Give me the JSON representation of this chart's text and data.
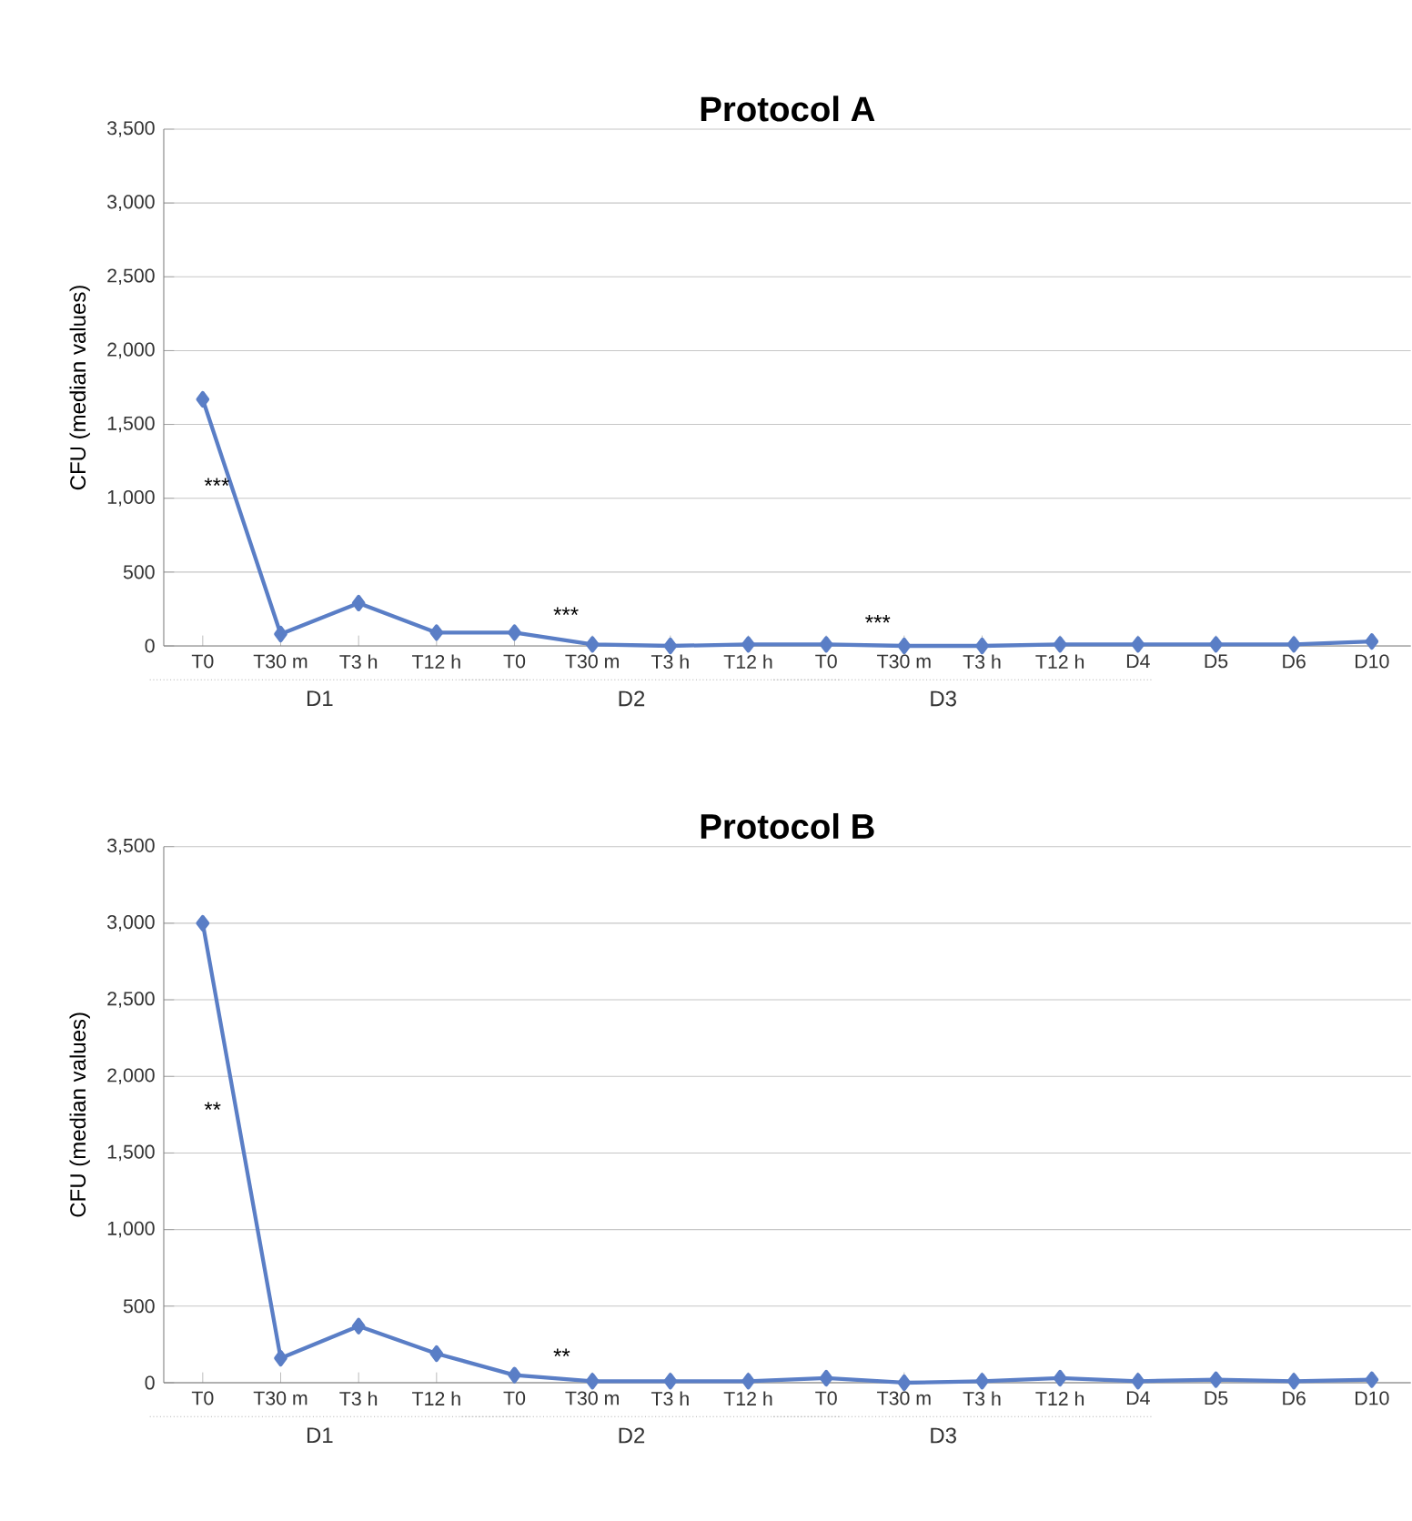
{
  "chart_data": [
    {
      "type": "line",
      "title": "Protocol A",
      "ylabel": "CFU (median values)",
      "categories": [
        "T0",
        "T30 m",
        "T3 h",
        "T12 h",
        "T0",
        "T30 m",
        "T3 h",
        "T12 h",
        "T0",
        "T30 m",
        "T3 h",
        "T12 h",
        "D4",
        "D5",
        "D6",
        "D10"
      ],
      "series": [
        {
          "color": "#5a7ec6",
          "values": [
            1670,
            80,
            290,
            90,
            90,
            10,
            0,
            10,
            10,
            0,
            0,
            10,
            10,
            10,
            10,
            30
          ]
        }
      ],
      "ylim": [
        0,
        3500
      ],
      "yticks": [
        0,
        500,
        {
          "value": 1000,
          "label": "1,000"
        },
        {
          "value": 1500,
          "label": "1,500"
        },
        {
          "value": 2000,
          "label": "2,000"
        },
        {
          "value": 2500,
          "label": "2,500"
        },
        {
          "value": 3000,
          "label": "3,000"
        },
        {
          "value": 3500,
          "label": "3,500"
        }
      ],
      "grid": "y",
      "marker": "diamond",
      "line_style": "solid",
      "annotations": [
        "***",
        "***",
        "***",
        "D1",
        "D2",
        "D3"
      ]
    },
    {
      "type": "line",
      "title": "Protocol B",
      "ylabel": "CFU (median values)",
      "categories": [
        "T0",
        "T30 m",
        "T3 h",
        "T12 h",
        "T0",
        "T30 m",
        "T3 h",
        "T12 h",
        "T0",
        "T30 m",
        "T3 h",
        "T12 h",
        "D4",
        "D5",
        "D6",
        "D10"
      ],
      "series": [
        {
          "color": "#5a7ec6",
          "values": [
            3000,
            160,
            370,
            190,
            50,
            10,
            10,
            10,
            30,
            0,
            10,
            30,
            10,
            20,
            10,
            20
          ]
        }
      ],
      "ylim": [
        0,
        3500
      ],
      "yticks": [
        0,
        500,
        {
          "value": 1000,
          "label": "1,000"
        },
        {
          "value": 1500,
          "label": "1,500"
        },
        {
          "value": 2000,
          "label": "2,000"
        },
        {
          "value": 2500,
          "label": "2,500"
        },
        {
          "value": 3000,
          "label": "3,000"
        },
        {
          "value": 3500,
          "label": "3,500"
        }
      ],
      "grid": "y",
      "marker": "diamond",
      "line_style": "solid",
      "annotations": [
        "**",
        "**",
        "D1",
        "D2",
        "D3"
      ]
    }
  ]
}
